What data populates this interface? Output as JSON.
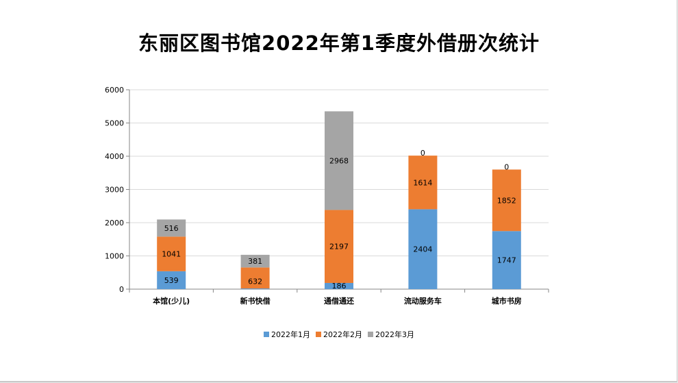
{
  "chart_data": {
    "type": "bar",
    "stacked": true,
    "title": "东丽区图书馆2022年第1季度外借册次统计",
    "categories": [
      "本馆(少儿)",
      "新书快借",
      "通借通还",
      "流动服务车",
      "城市书房"
    ],
    "series": [
      {
        "name": "2022年1月",
        "color": "#5b9bd5",
        "values": [
          539,
          20,
          186,
          2404,
          1747
        ]
      },
      {
        "name": "2022年2月",
        "color": "#ed7d31",
        "values": [
          1041,
          632,
          2197,
          1614,
          1852
        ]
      },
      {
        "name": "2022年3月",
        "color": "#a5a5a5",
        "values": [
          516,
          381,
          2968,
          0,
          0
        ]
      }
    ],
    "ylim": [
      0,
      6000
    ],
    "yticks": [
      0,
      1000,
      2000,
      3000,
      4000,
      5000,
      6000
    ],
    "xlabel": "",
    "ylabel": "",
    "grid": true,
    "legend": "bottom"
  }
}
